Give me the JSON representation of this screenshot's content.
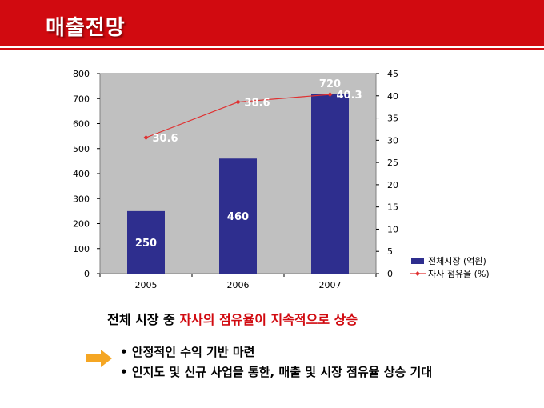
{
  "slide": {
    "title": "매출전망",
    "headline_prefix": "전체 시장 중 ",
    "headline_highlight": "자사의 점유율이 지속적으로 상승",
    "bullets": [
      "• 안정적인 수익 기반 마련",
      "• 인지도 및 신규 사업을 통한, 매출 및 시장 점유율 상승 기대"
    ]
  },
  "colors": {
    "brand_red": "#d10a10",
    "bar": "#2e2e8e",
    "plot_bg": "#c0c0c0",
    "line": "#e03030",
    "arrow": "#f5a623"
  },
  "chart_data": {
    "type": "bar",
    "categories": [
      "2005",
      "2006",
      "2007"
    ],
    "series": [
      {
        "name": "전체시장 (억원)",
        "type": "bar",
        "axis": "left",
        "values": [
          250,
          460,
          720
        ],
        "labels": [
          "250",
          "460",
          "720"
        ]
      },
      {
        "name": "자사 점유율 (%)",
        "type": "line",
        "axis": "right",
        "values": [
          30.6,
          38.6,
          40.3
        ],
        "labels": [
          "30.6",
          "38.6",
          "40.3"
        ]
      }
    ],
    "y_left": {
      "min": 0,
      "max": 800,
      "ticks": [
        "0",
        "100",
        "200",
        "300",
        "400",
        "500",
        "600",
        "700",
        "800"
      ]
    },
    "y_right": {
      "min": 0,
      "max": 45,
      "ticks": [
        "0",
        "5",
        "10",
        "15",
        "20",
        "25",
        "30",
        "35",
        "40",
        "45"
      ]
    },
    "grid": false,
    "legend_position": "right-bottom"
  }
}
